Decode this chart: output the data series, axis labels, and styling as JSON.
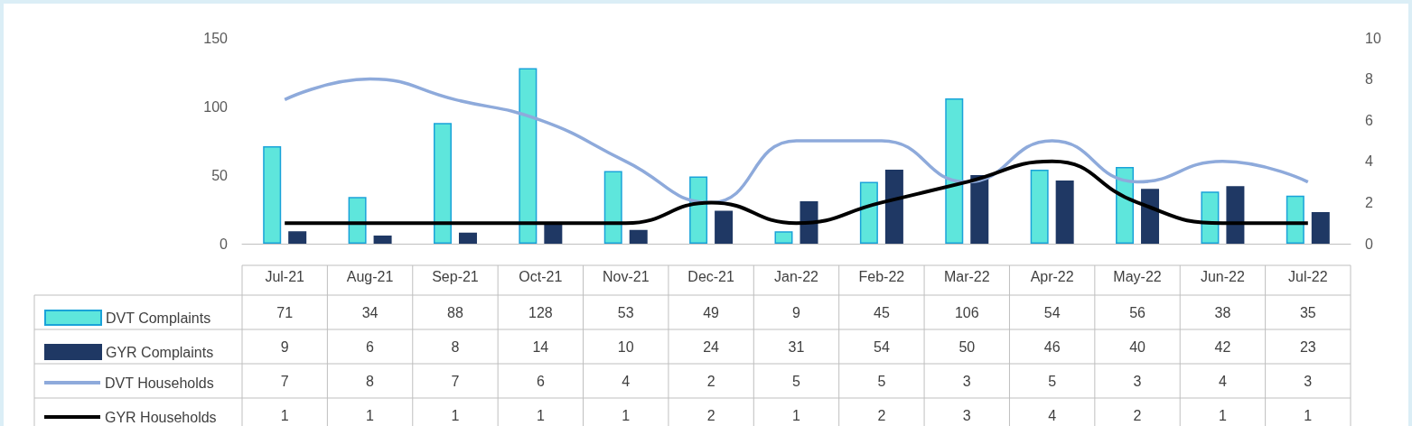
{
  "chart_data": {
    "type": "bar",
    "categories": [
      "Jul-21",
      "Aug-21",
      "Sep-21",
      "Oct-21",
      "Nov-21",
      "Dec-21",
      "Jan-22",
      "Feb-22",
      "Mar-22",
      "Apr-22",
      "May-22",
      "Jun-22",
      "Jul-22"
    ],
    "series": [
      {
        "name": "DVT Complaints",
        "color": "#5ee6dc",
        "values": [
          71,
          34,
          88,
          128,
          53,
          49,
          9,
          45,
          106,
          54,
          56,
          38,
          35
        ]
      },
      {
        "name": "GYR Complaints",
        "color": "#1f3864",
        "values": [
          9,
          6,
          8,
          14,
          10,
          24,
          31,
          54,
          50,
          46,
          40,
          42,
          23
        ]
      },
      {
        "name": "DVT Households",
        "type": "line",
        "axis": "y2",
        "color": "#8eaadb",
        "values": [
          7,
          8,
          7,
          6,
          4,
          2,
          5,
          5,
          3,
          5,
          3,
          4,
          3
        ]
      },
      {
        "name": "GYR Households",
        "type": "line",
        "axis": "y2",
        "color": "#000000",
        "values": [
          1,
          1,
          1,
          1,
          1,
          2,
          1,
          2,
          3,
          4,
          2,
          1,
          1
        ]
      }
    ],
    "ylim": [
      0,
      150
    ],
    "yticks": [
      0,
      50,
      100,
      150
    ],
    "y2lim": [
      0,
      10
    ],
    "y2ticks": [
      0,
      2,
      4,
      6,
      8,
      10
    ],
    "grid": false,
    "legend": "bottom left",
    "marker": "none",
    "line_style": "solid",
    "data_labels": true
  }
}
